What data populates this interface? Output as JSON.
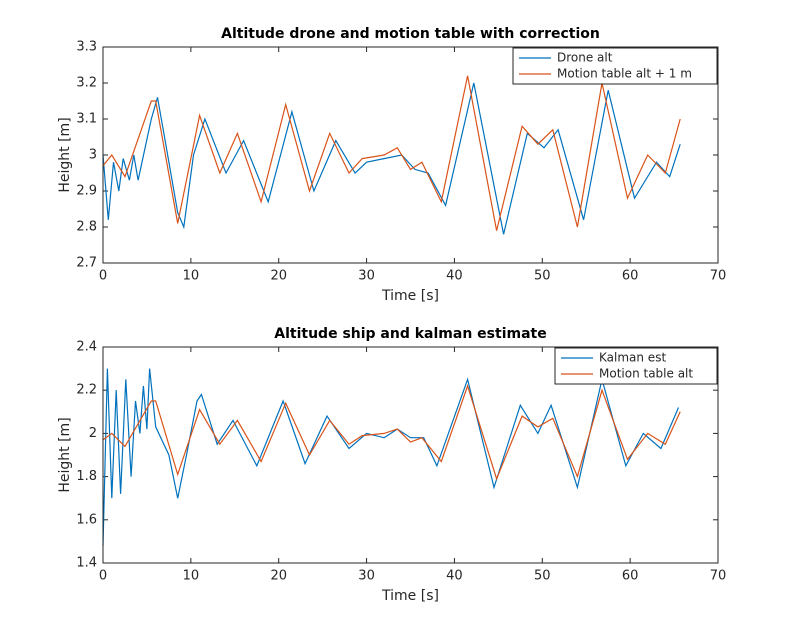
{
  "chart_data": [
    {
      "type": "line",
      "title": "Altitude drone and motion table with correction",
      "x_label": "Time [s]",
      "y_label": "Height [m]",
      "xlim": [
        0,
        70
      ],
      "xticks": [
        0,
        10,
        20,
        30,
        40,
        50,
        60,
        70
      ],
      "ylim": [
        2.7,
        3.3
      ],
      "yticks": [
        2.7,
        2.8,
        2.9,
        3,
        3.1,
        3.2,
        3.3
      ],
      "grid": false,
      "legend": "northeast",
      "series": [
        {
          "name": "Drone alt",
          "color": "#0072bd",
          "x": [
            0,
            0.6,
            1.2,
            1.8,
            2.3,
            3,
            3.5,
            4,
            5.5,
            6.2,
            7,
            8.5,
            9.2,
            10.3,
            11.6,
            14,
            16,
            18.8,
            21.5,
            24,
            26.5,
            28.7,
            30,
            32,
            34,
            35.5,
            37,
            39,
            42.2,
            45.6,
            48.3,
            50.2,
            51.8,
            54.7,
            57.5,
            60.5,
            63,
            64.5,
            65.7
          ],
          "values": [
            3.0,
            2.82,
            2.98,
            2.9,
            2.99,
            2.93,
            3.0,
            2.93,
            3.1,
            3.16,
            3.05,
            2.84,
            2.8,
            3.0,
            3.1,
            2.95,
            3.04,
            2.87,
            3.12,
            2.9,
            3.04,
            2.95,
            2.98,
            2.99,
            3.0,
            2.96,
            2.95,
            2.86,
            3.2,
            2.78,
            3.06,
            3.02,
            3.07,
            2.82,
            3.18,
            2.88,
            2.98,
            2.94,
            3.03
          ]
        },
        {
          "name": "Motion table alt + 1 m",
          "color": "#d95319",
          "x": [
            0,
            1,
            2.5,
            5.5,
            6,
            8.5,
            11,
            13.3,
            15.3,
            18,
            20.8,
            23.5,
            25.8,
            28,
            29.5,
            32,
            33.5,
            35,
            36.3,
            38.5,
            41.5,
            44.8,
            47.7,
            49.5,
            51.2,
            54,
            56.8,
            59.7,
            62,
            64,
            65.7
          ],
          "values": [
            2.97,
            3.0,
            2.94,
            3.15,
            3.15,
            2.81,
            3.11,
            2.95,
            3.06,
            2.87,
            3.14,
            2.9,
            3.06,
            2.95,
            2.99,
            3.0,
            3.02,
            2.96,
            2.98,
            2.87,
            3.22,
            2.79,
            3.08,
            3.03,
            3.07,
            2.8,
            3.2,
            2.88,
            3.0,
            2.95,
            3.1
          ]
        }
      ]
    },
    {
      "type": "line",
      "title": "Altitude ship and kalman estimate",
      "x_label": "Time [s]",
      "y_label": "Height [m]",
      "xlim": [
        0,
        70
      ],
      "xticks": [
        0,
        10,
        20,
        30,
        40,
        50,
        60,
        70
      ],
      "ylim": [
        1.4,
        2.4
      ],
      "yticks": [
        1.4,
        1.6,
        1.8,
        2,
        2.2,
        2.4
      ],
      "grid": false,
      "legend": "northeast",
      "series": [
        {
          "name": "Kalman est",
          "color": "#0072bd",
          "x": [
            0,
            0.5,
            1,
            1.5,
            2,
            2.6,
            3.2,
            3.7,
            4.2,
            4.6,
            5,
            5.3,
            6,
            7.5,
            8.5,
            9.5,
            10.7,
            11.2,
            13,
            14.8,
            17.5,
            20.5,
            23,
            25.5,
            28,
            30,
            32,
            33.5,
            35,
            36.5,
            38,
            41.5,
            44.5,
            47.5,
            49.5,
            51,
            54,
            56.8,
            59.5,
            61.5,
            63.5,
            65.5
          ],
          "values": [
            1.48,
            2.3,
            1.7,
            2.2,
            1.72,
            2.25,
            1.8,
            2.15,
            2.0,
            2.22,
            2.02,
            2.3,
            2.03,
            1.9,
            1.7,
            1.9,
            2.15,
            2.18,
            1.95,
            2.06,
            1.85,
            2.15,
            1.86,
            2.08,
            1.93,
            2.0,
            1.98,
            2.02,
            1.98,
            1.98,
            1.85,
            2.25,
            1.75,
            2.13,
            2.0,
            2.13,
            1.75,
            2.25,
            1.85,
            2.0,
            1.93,
            2.12
          ]
        },
        {
          "name": "Motion table alt",
          "color": "#d95319",
          "x": [
            0,
            1,
            2.5,
            5.5,
            6,
            8.5,
            11,
            13.3,
            15.3,
            18,
            20.8,
            23.5,
            25.8,
            28,
            29.5,
            32,
            33.5,
            35,
            36.3,
            38.5,
            41.5,
            44.8,
            47.7,
            49.5,
            51.2,
            54,
            56.8,
            59.7,
            62,
            64,
            65.7
          ],
          "values": [
            1.97,
            2.0,
            1.94,
            2.15,
            2.15,
            1.81,
            2.11,
            1.95,
            2.06,
            1.87,
            2.14,
            1.9,
            2.06,
            1.95,
            1.99,
            2.0,
            2.02,
            1.96,
            1.98,
            1.87,
            2.22,
            1.79,
            2.08,
            2.03,
            2.07,
            1.8,
            2.2,
            1.88,
            2.0,
            1.95,
            2.1
          ]
        }
      ]
    }
  ]
}
